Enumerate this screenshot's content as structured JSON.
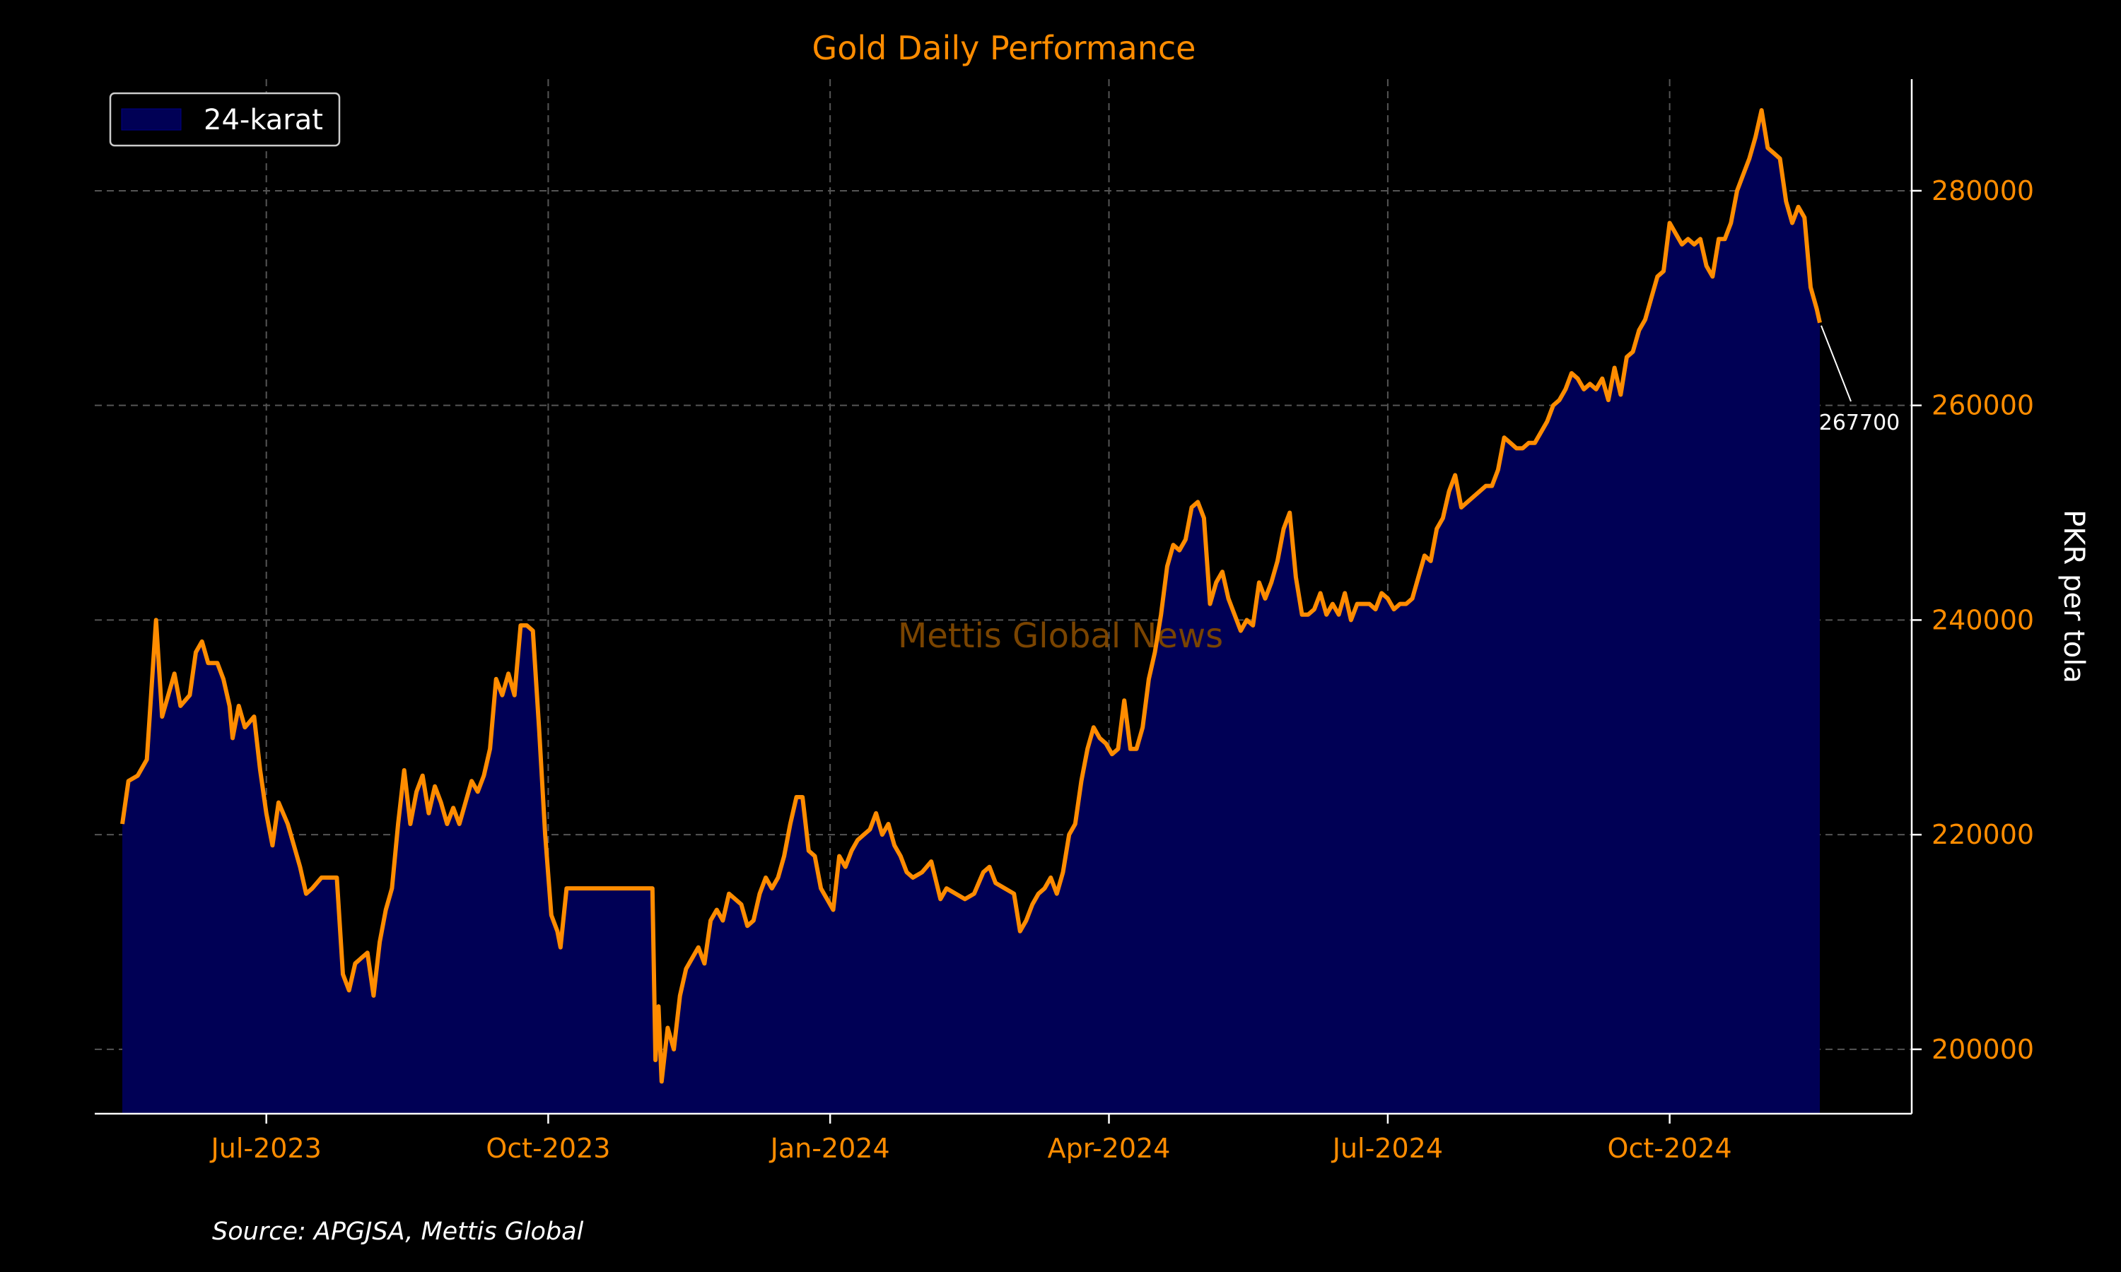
{
  "chart_data": {
    "type": "area",
    "title": "Gold Daily Performance",
    "ylabel": "PKR per tola",
    "xlabel": "",
    "source": "Source: APGJSA, Mettis Global",
    "watermark": "Mettis Global News",
    "x_range": [
      "2023-05-06",
      "2024-12-19"
    ],
    "ylim": [
      194000,
      290400
    ],
    "y_axis_position": "right",
    "grid": true,
    "legend_position": "top-left",
    "x_ticks": [
      {
        "date": "2023-07-01",
        "label": "Jul-2023"
      },
      {
        "date": "2023-10-01",
        "label": "Oct-2023"
      },
      {
        "date": "2024-01-01",
        "label": "Jan-2024"
      },
      {
        "date": "2024-04-01",
        "label": "Apr-2024"
      },
      {
        "date": "2024-07-01",
        "label": "Jul-2024"
      },
      {
        "date": "2024-10-01",
        "label": "Oct-2024"
      }
    ],
    "y_ticks": [
      {
        "value": 200000,
        "label": "200000"
      },
      {
        "value": 220000,
        "label": "220000"
      },
      {
        "value": 240000,
        "label": "240000"
      },
      {
        "value": 260000,
        "label": "260000"
      },
      {
        "value": 280000,
        "label": "280000"
      }
    ],
    "annotation": {
      "label": "267700",
      "date": "2024-12-09",
      "value": 267700
    },
    "colors": {
      "line": "#ff8c00",
      "fill": "#000055",
      "background": "#000000",
      "axis_text": "#ff8c00",
      "grid": "#555555",
      "watermark": "#7a4400"
    },
    "series": [
      {
        "name": "24-karat",
        "points": [
          [
            "2023-05-15",
            221000
          ],
          [
            "2023-05-17",
            225000
          ],
          [
            "2023-05-20",
            225500
          ],
          [
            "2023-05-23",
            227000
          ],
          [
            "2023-05-26",
            240000
          ],
          [
            "2023-05-28",
            231000
          ],
          [
            "2023-05-30",
            233000
          ],
          [
            "2023-06-01",
            235000
          ],
          [
            "2023-06-03",
            232000
          ],
          [
            "2023-06-06",
            233000
          ],
          [
            "2023-06-08",
            237000
          ],
          [
            "2023-06-10",
            238000
          ],
          [
            "2023-06-12",
            236000
          ],
          [
            "2023-06-15",
            236000
          ],
          [
            "2023-06-17",
            234500
          ],
          [
            "2023-06-19",
            232000
          ],
          [
            "2023-06-20",
            229000
          ],
          [
            "2023-06-22",
            232000
          ],
          [
            "2023-06-24",
            230000
          ],
          [
            "2023-06-27",
            231000
          ],
          [
            "2023-06-29",
            226000
          ],
          [
            "2023-07-01",
            222000
          ],
          [
            "2023-07-03",
            219000
          ],
          [
            "2023-07-05",
            223000
          ],
          [
            "2023-07-08",
            221000
          ],
          [
            "2023-07-10",
            219000
          ],
          [
            "2023-07-12",
            217000
          ],
          [
            "2023-07-14",
            214500
          ],
          [
            "2023-07-16",
            215000
          ],
          [
            "2023-07-19",
            216000
          ],
          [
            "2023-07-22",
            216000
          ],
          [
            "2023-07-24",
            216000
          ],
          [
            "2023-07-26",
            207000
          ],
          [
            "2023-07-28",
            205500
          ],
          [
            "2023-07-30",
            208000
          ],
          [
            "2023-08-01",
            208500
          ],
          [
            "2023-08-03",
            209000
          ],
          [
            "2023-08-05",
            205000
          ],
          [
            "2023-08-07",
            210000
          ],
          [
            "2023-08-09",
            213000
          ],
          [
            "2023-08-11",
            215000
          ],
          [
            "2023-08-13",
            221000
          ],
          [
            "2023-08-15",
            226000
          ],
          [
            "2023-08-17",
            221000
          ],
          [
            "2023-08-19",
            224000
          ],
          [
            "2023-08-21",
            225500
          ],
          [
            "2023-08-23",
            222000
          ],
          [
            "2023-08-25",
            224500
          ],
          [
            "2023-08-27",
            223000
          ],
          [
            "2023-08-29",
            221000
          ],
          [
            "2023-08-31",
            222500
          ],
          [
            "2023-09-02",
            221000
          ],
          [
            "2023-09-04",
            223000
          ],
          [
            "2023-09-06",
            225000
          ],
          [
            "2023-09-08",
            224000
          ],
          [
            "2023-09-10",
            225500
          ],
          [
            "2023-09-12",
            228000
          ],
          [
            "2023-09-14",
            234500
          ],
          [
            "2023-09-16",
            233000
          ],
          [
            "2023-09-18",
            235000
          ],
          [
            "2023-09-20",
            233000
          ],
          [
            "2023-09-22",
            239500
          ],
          [
            "2023-09-24",
            239500
          ],
          [
            "2023-09-26",
            239000
          ],
          [
            "2023-09-28",
            230000
          ],
          [
            "2023-09-30",
            220000
          ],
          [
            "2023-10-02",
            212500
          ],
          [
            "2023-10-04",
            211000
          ],
          [
            "2023-10-05",
            209500
          ],
          [
            "2023-10-07",
            215000
          ],
          [
            "2023-10-15",
            215000
          ],
          [
            "2023-10-25",
            215000
          ],
          [
            "2023-11-02",
            215000
          ],
          [
            "2023-11-04",
            215000
          ],
          [
            "2023-11-05",
            199000
          ],
          [
            "2023-11-06",
            204000
          ],
          [
            "2023-11-07",
            197000
          ],
          [
            "2023-11-09",
            202000
          ],
          [
            "2023-11-11",
            200000
          ],
          [
            "2023-11-13",
            205000
          ],
          [
            "2023-11-15",
            207500
          ],
          [
            "2023-11-17",
            208500
          ],
          [
            "2023-11-19",
            209500
          ],
          [
            "2023-11-21",
            208000
          ],
          [
            "2023-11-23",
            212000
          ],
          [
            "2023-11-25",
            213000
          ],
          [
            "2023-11-27",
            212000
          ],
          [
            "2023-11-29",
            214500
          ],
          [
            "2023-12-01",
            214000
          ],
          [
            "2023-12-03",
            213500
          ],
          [
            "2023-12-05",
            211500
          ],
          [
            "2023-12-07",
            212000
          ],
          [
            "2023-12-09",
            214500
          ],
          [
            "2023-12-11",
            216000
          ],
          [
            "2023-12-13",
            215000
          ],
          [
            "2023-12-15",
            216000
          ],
          [
            "2023-12-17",
            218000
          ],
          [
            "2023-12-19",
            221000
          ],
          [
            "2023-12-21",
            223500
          ],
          [
            "2023-12-23",
            223500
          ],
          [
            "2023-12-25",
            218500
          ],
          [
            "2023-12-27",
            218000
          ],
          [
            "2023-12-29",
            215000
          ],
          [
            "2023-12-31",
            214000
          ],
          [
            "2024-01-02",
            213000
          ],
          [
            "2024-01-04",
            218000
          ],
          [
            "2024-01-06",
            217000
          ],
          [
            "2024-01-08",
            218500
          ],
          [
            "2024-01-10",
            219500
          ],
          [
            "2024-01-12",
            220000
          ],
          [
            "2024-01-14",
            220500
          ],
          [
            "2024-01-16",
            222000
          ],
          [
            "2024-01-18",
            220000
          ],
          [
            "2024-01-20",
            221000
          ],
          [
            "2024-01-22",
            219000
          ],
          [
            "2024-01-24",
            218000
          ],
          [
            "2024-01-26",
            216500
          ],
          [
            "2024-01-28",
            216000
          ],
          [
            "2024-01-31",
            216500
          ],
          [
            "2024-02-03",
            217500
          ],
          [
            "2024-02-06",
            214000
          ],
          [
            "2024-02-08",
            215000
          ],
          [
            "2024-02-11",
            214500
          ],
          [
            "2024-02-14",
            214000
          ],
          [
            "2024-02-17",
            214500
          ],
          [
            "2024-02-20",
            216500
          ],
          [
            "2024-02-22",
            217000
          ],
          [
            "2024-02-24",
            215500
          ],
          [
            "2024-02-27",
            215000
          ],
          [
            "2024-03-01",
            214500
          ],
          [
            "2024-03-03",
            211000
          ],
          [
            "2024-03-05",
            212000
          ],
          [
            "2024-03-07",
            213500
          ],
          [
            "2024-03-09",
            214500
          ],
          [
            "2024-03-11",
            215000
          ],
          [
            "2024-03-13",
            216000
          ],
          [
            "2024-03-15",
            214500
          ],
          [
            "2024-03-17",
            216500
          ],
          [
            "2024-03-19",
            220000
          ],
          [
            "2024-03-21",
            221000
          ],
          [
            "2024-03-23",
            225000
          ],
          [
            "2024-03-25",
            228000
          ],
          [
            "2024-03-27",
            230000
          ],
          [
            "2024-03-29",
            229000
          ],
          [
            "2024-03-31",
            228500
          ],
          [
            "2024-04-02",
            227500
          ],
          [
            "2024-04-04",
            228000
          ],
          [
            "2024-04-06",
            232500
          ],
          [
            "2024-04-08",
            228000
          ],
          [
            "2024-04-10",
            228000
          ],
          [
            "2024-04-12",
            230000
          ],
          [
            "2024-04-14",
            234500
          ],
          [
            "2024-04-16",
            237000
          ],
          [
            "2024-04-18",
            240500
          ],
          [
            "2024-04-20",
            245000
          ],
          [
            "2024-04-22",
            247000
          ],
          [
            "2024-04-24",
            246500
          ],
          [
            "2024-04-26",
            247500
          ],
          [
            "2024-04-28",
            250500
          ],
          [
            "2024-04-30",
            251000
          ],
          [
            "2024-05-02",
            249500
          ],
          [
            "2024-05-04",
            241500
          ],
          [
            "2024-05-06",
            243500
          ],
          [
            "2024-05-08",
            244500
          ],
          [
            "2024-05-10",
            242000
          ],
          [
            "2024-05-12",
            240500
          ],
          [
            "2024-05-14",
            239000
          ],
          [
            "2024-05-16",
            240000
          ],
          [
            "2024-05-18",
            239500
          ],
          [
            "2024-05-20",
            243500
          ],
          [
            "2024-05-22",
            242000
          ],
          [
            "2024-05-24",
            243500
          ],
          [
            "2024-05-26",
            245500
          ],
          [
            "2024-05-28",
            248500
          ],
          [
            "2024-05-30",
            250000
          ],
          [
            "2024-06-01",
            244000
          ],
          [
            "2024-06-03",
            240500
          ],
          [
            "2024-06-05",
            240500
          ],
          [
            "2024-06-07",
            241000
          ],
          [
            "2024-06-09",
            242500
          ],
          [
            "2024-06-11",
            240500
          ],
          [
            "2024-06-13",
            241500
          ],
          [
            "2024-06-15",
            240500
          ],
          [
            "2024-06-17",
            242500
          ],
          [
            "2024-06-19",
            240000
          ],
          [
            "2024-06-21",
            241500
          ],
          [
            "2024-06-23",
            241500
          ],
          [
            "2024-06-25",
            241500
          ],
          [
            "2024-06-27",
            241000
          ],
          [
            "2024-06-29",
            242500
          ],
          [
            "2024-07-01",
            242000
          ],
          [
            "2024-07-03",
            241000
          ],
          [
            "2024-07-05",
            241500
          ],
          [
            "2024-07-07",
            241500
          ],
          [
            "2024-07-09",
            242000
          ],
          [
            "2024-07-11",
            244000
          ],
          [
            "2024-07-13",
            246000
          ],
          [
            "2024-07-15",
            245500
          ],
          [
            "2024-07-17",
            248500
          ],
          [
            "2024-07-19",
            249500
          ],
          [
            "2024-07-21",
            252000
          ],
          [
            "2024-07-23",
            253500
          ],
          [
            "2024-07-25",
            250500
          ],
          [
            "2024-07-27",
            251000
          ],
          [
            "2024-07-29",
            251500
          ],
          [
            "2024-07-31",
            252000
          ],
          [
            "2024-08-02",
            252500
          ],
          [
            "2024-08-04",
            252500
          ],
          [
            "2024-08-06",
            254000
          ],
          [
            "2024-08-08",
            257000
          ],
          [
            "2024-08-10",
            256500
          ],
          [
            "2024-08-12",
            256000
          ],
          [
            "2024-08-14",
            256000
          ],
          [
            "2024-08-16",
            256500
          ],
          [
            "2024-08-18",
            256500
          ],
          [
            "2024-08-20",
            257500
          ],
          [
            "2024-08-22",
            258500
          ],
          [
            "2024-08-24",
            260000
          ],
          [
            "2024-08-26",
            260500
          ],
          [
            "2024-08-28",
            261500
          ],
          [
            "2024-08-30",
            263000
          ],
          [
            "2024-09-01",
            262500
          ],
          [
            "2024-09-03",
            261500
          ],
          [
            "2024-09-05",
            262000
          ],
          [
            "2024-09-07",
            261500
          ],
          [
            "2024-09-09",
            262500
          ],
          [
            "2024-09-11",
            260500
          ],
          [
            "2024-09-13",
            263500
          ],
          [
            "2024-09-15",
            261000
          ],
          [
            "2024-09-17",
            264500
          ],
          [
            "2024-09-19",
            265000
          ],
          [
            "2024-09-21",
            267000
          ],
          [
            "2024-09-23",
            268000
          ],
          [
            "2024-09-25",
            270000
          ],
          [
            "2024-09-27",
            272000
          ],
          [
            "2024-09-29",
            272500
          ],
          [
            "2024-10-01",
            277000
          ],
          [
            "2024-10-03",
            276000
          ],
          [
            "2024-10-05",
            275000
          ],
          [
            "2024-10-07",
            275500
          ],
          [
            "2024-10-09",
            275000
          ],
          [
            "2024-10-11",
            275500
          ],
          [
            "2024-10-13",
            273000
          ],
          [
            "2024-10-15",
            272000
          ],
          [
            "2024-10-17",
            275500
          ],
          [
            "2024-10-19",
            275500
          ],
          [
            "2024-10-21",
            277000
          ],
          [
            "2024-10-23",
            280000
          ],
          [
            "2024-10-25",
            281500
          ],
          [
            "2024-10-27",
            283000
          ],
          [
            "2024-10-29",
            285000
          ],
          [
            "2024-10-31",
            287500
          ],
          [
            "2024-11-02",
            284000
          ],
          [
            "2024-11-04",
            283500
          ],
          [
            "2024-11-06",
            283000
          ],
          [
            "2024-11-08",
            279000
          ],
          [
            "2024-11-10",
            277000
          ],
          [
            "2024-11-12",
            278500
          ],
          [
            "2024-11-14",
            277500
          ],
          [
            "2024-11-16",
            271000
          ],
          [
            "2024-11-18",
            269000
          ],
          [
            "2024-11-19",
            267700
          ]
        ]
      }
    ]
  }
}
